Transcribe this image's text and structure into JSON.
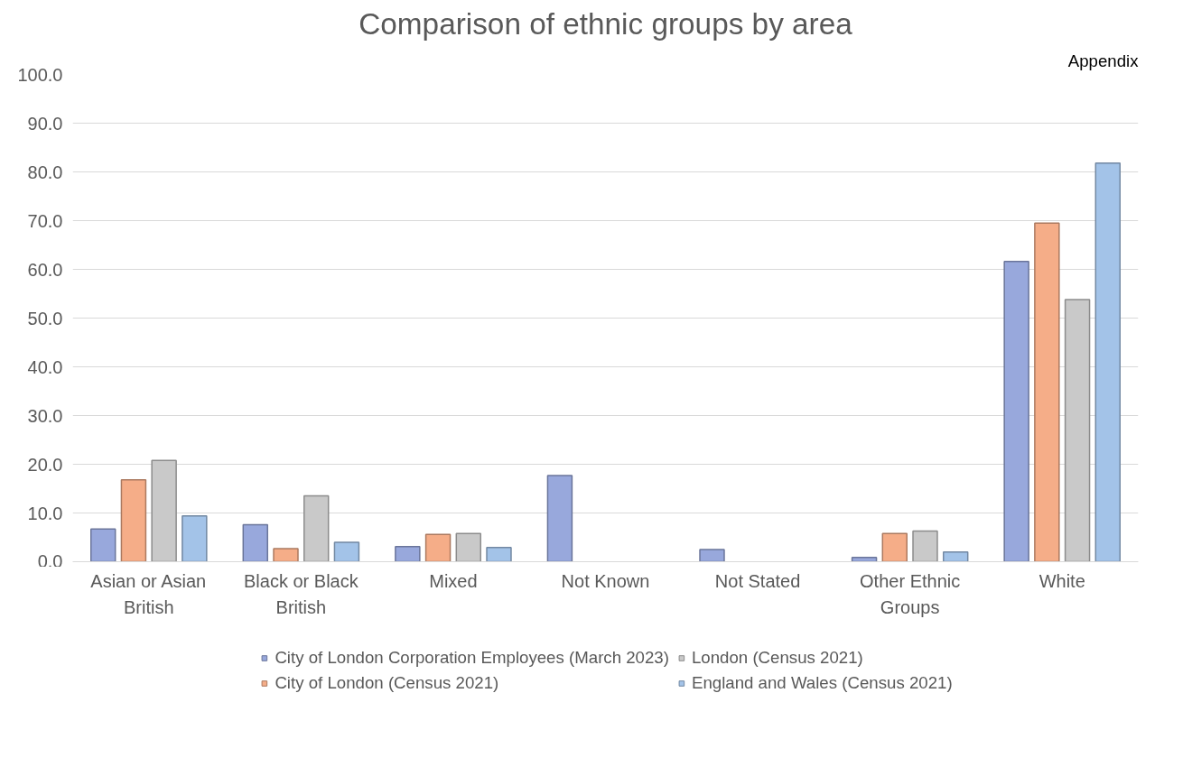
{
  "chart_data": {
    "type": "bar",
    "title": "Comparison of ethnic groups by area",
    "categories": [
      "Asian or Asian British",
      "Black or Black British",
      "Mixed",
      "Not Known",
      "Not Stated",
      "Other Ethnic Groups",
      "White"
    ],
    "series": [
      {
        "name": "City of London Corporation Employees (March 2023)",
        "color": "#98a8dc",
        "values": [
          6.7,
          7.6,
          3.1,
          17.7,
          2.5,
          0.9,
          61.6
        ]
      },
      {
        "name": "City of London (Census 2021)",
        "color": "#f5ad88",
        "values": [
          16.8,
          2.7,
          5.6,
          null,
          null,
          5.8,
          69.5
        ]
      },
      {
        "name": "London (Census 2021)",
        "color": "#c9c9c9",
        "values": [
          20.8,
          13.5,
          5.8,
          null,
          null,
          6.3,
          53.8
        ]
      },
      {
        "name": "England and Wales (Census 2021)",
        "color": "#a3c3e8",
        "values": [
          9.4,
          4.0,
          2.9,
          null,
          null,
          2.0,
          81.8
        ]
      }
    ],
    "ylim": [
      0,
      100
    ],
    "yticks": [
      {
        "value": 0,
        "label": "0.0"
      },
      {
        "value": 10,
        "label": "10.0"
      },
      {
        "value": 20,
        "label": "20.0"
      },
      {
        "value": 30,
        "label": "30.0"
      },
      {
        "value": 40,
        "label": "40.0"
      },
      {
        "value": 50,
        "label": "50.0"
      },
      {
        "value": 60,
        "label": "60.0"
      },
      {
        "value": 70,
        "label": "70.0"
      },
      {
        "value": 80,
        "label": "80.0"
      },
      {
        "value": 90,
        "label": "90.0"
      },
      {
        "value": 100,
        "label": "100.0"
      }
    ],
    "grid": "y",
    "legend": "bottom",
    "annotations": [
      "Appendix"
    ]
  }
}
